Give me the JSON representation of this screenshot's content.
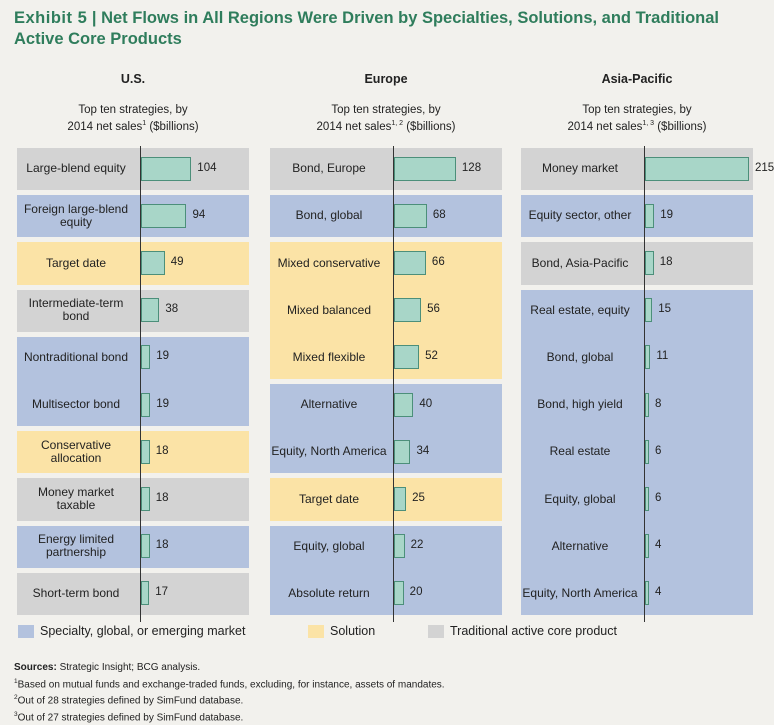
{
  "header": {
    "exhibit": "Exhibit 5",
    "title": "Net Flows in All Regions Were Driven by Specialties, Solutions, and Traditional Active Core Products"
  },
  "colors": {
    "specialty": "#b3c2de",
    "solution": "#fbe3a6",
    "traditional": "#d3d3d3",
    "bar_fill": "#a8d6c8",
    "bar_stroke": "#4c8f7a",
    "title": "#2f7d5c"
  },
  "legend": [
    {
      "key": "specialty",
      "label": "Specialty, global, or emerging market"
    },
    {
      "key": "solution",
      "label": "Solution"
    },
    {
      "key": "traditional",
      "label": "Traditional active core product"
    }
  ],
  "chart_data": [
    {
      "type": "bar",
      "title": "U.S.",
      "subtitle_line1": "Top ten strategies, by",
      "subtitle_line2": "2014 net sales",
      "subtitle_sup": "1",
      "subtitle_unit": " ($billions)",
      "categories": [
        "Large-blend equity",
        "Foreign large-blend equity",
        "Target date",
        "Intermediate-term bond",
        "Nontraditional bond",
        "Multisector bond",
        "Conservative allocation",
        "Money market taxable",
        "Energy limited partnership",
        "Short-term bond"
      ],
      "values": [
        104,
        94,
        49,
        38,
        19,
        19,
        18,
        18,
        18,
        17
      ],
      "groups": [
        "traditional",
        "specialty",
        "solution",
        "traditional",
        "specialty",
        "specialty",
        "solution",
        "traditional",
        "specialty",
        "traditional"
      ]
    },
    {
      "type": "bar",
      "title": "Europe",
      "subtitle_line1": "Top ten strategies, by",
      "subtitle_line2": "2014 net sales",
      "subtitle_sup": "1, 2",
      "subtitle_unit": " ($billions)",
      "categories": [
        "Bond, Europe",
        "Bond, global",
        "Mixed conservative",
        "Mixed balanced",
        "Mixed flexible",
        "Alternative",
        "Equity, North America",
        "Target date",
        "Equity, global",
        "Absolute return"
      ],
      "values": [
        128,
        68,
        66,
        56,
        52,
        40,
        34,
        25,
        22,
        20
      ],
      "groups": [
        "traditional",
        "specialty",
        "solution",
        "solution",
        "solution",
        "specialty",
        "specialty",
        "solution",
        "specialty",
        "specialty"
      ]
    },
    {
      "type": "bar",
      "title": "Asia-Pacific",
      "subtitle_line1": "Top ten strategies, by",
      "subtitle_line2": "2014 net sales",
      "subtitle_sup": "1, 3",
      "subtitle_unit": " ($billions)",
      "categories": [
        "Money market",
        "Equity sector, other",
        "Bond, Asia-Pacific",
        "Real estate, equity",
        "Bond, global",
        "Bond, high yield",
        "Real estate",
        "Equity, global",
        "Alternative",
        "Equity, North America"
      ],
      "values": [
        215,
        19,
        18,
        15,
        11,
        8,
        6,
        6,
        4,
        4
      ],
      "groups": [
        "traditional",
        "specialty",
        "traditional",
        "specialty",
        "specialty",
        "specialty",
        "specialty",
        "specialty",
        "specialty",
        "specialty"
      ]
    }
  ],
  "notes": {
    "sources_label": "Sources:",
    "sources_text": " Strategic Insight; BCG analysis.",
    "n1_mark": "1",
    "n1_text": "Based on mutual funds and exchange-traded funds, excluding, for instance, assets of mandates.",
    "n2_mark": "2",
    "n2_text": "Out of 28 strategies defined by SimFund database.",
    "n3_mark": "3",
    "n3_text": "Out of 27 strategies defined by SimFund database."
  }
}
